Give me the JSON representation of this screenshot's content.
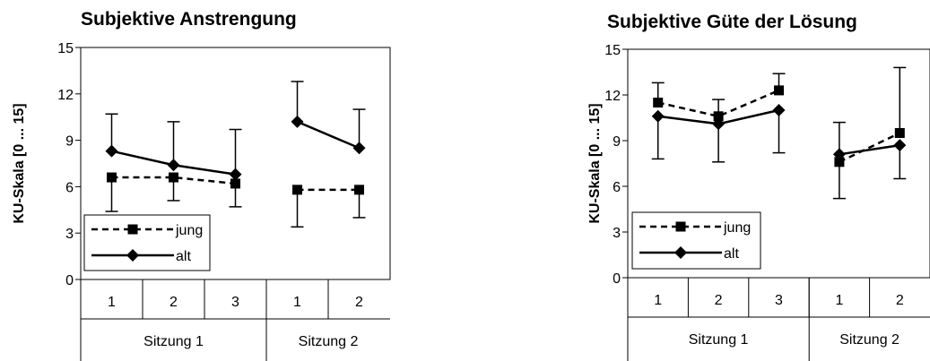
{
  "chart_data": [
    {
      "type": "line",
      "title": "Subjektive Anstrengung",
      "ylabel": "KU-Skala [0 ... 15]",
      "xlabel": "",
      "ylim": [
        0,
        15
      ],
      "yticks": [
        0,
        3,
        6,
        9,
        12,
        15
      ],
      "categories": [
        "1",
        "2",
        "3",
        "1",
        "2"
      ],
      "groups": [
        {
          "label": "Sitzung 1",
          "categories": [
            "1",
            "2",
            "3"
          ]
        },
        {
          "label": "Sitzung 2",
          "categories": [
            "1",
            "2"
          ]
        }
      ],
      "legend_position": "bottom-left",
      "series": [
        {
          "name": "jung",
          "style": "dashed",
          "marker": "square",
          "values": [
            6.6,
            6.6,
            6.2,
            5.8,
            5.8
          ],
          "error_low": [
            4.4,
            5.1,
            null,
            3.4,
            4.0
          ],
          "error_high": [
            null,
            null,
            null,
            null,
            null
          ]
        },
        {
          "name": "alt",
          "style": "solid",
          "marker": "diamond",
          "values": [
            8.3,
            7.4,
            6.8,
            10.2,
            8.5
          ],
          "error_low": [
            null,
            null,
            4.7,
            null,
            null
          ],
          "error_high": [
            10.7,
            10.2,
            9.7,
            12.8,
            11.0
          ]
        }
      ]
    },
    {
      "type": "line",
      "title": "Subjektive Güte der Lösung",
      "ylabel": "KU-Skala [0 ... 15]",
      "xlabel": "",
      "ylim": [
        0,
        15
      ],
      "yticks": [
        0,
        3,
        6,
        9,
        12,
        15
      ],
      "categories": [
        "1",
        "2",
        "3",
        "1",
        "2"
      ],
      "groups": [
        {
          "label": "Sitzung 1",
          "categories": [
            "1",
            "2",
            "3"
          ]
        },
        {
          "label": "Sitzung 2",
          "categories": [
            "1",
            "2"
          ]
        }
      ],
      "legend_position": "bottom-left",
      "series": [
        {
          "name": "jung",
          "style": "dashed",
          "marker": "square",
          "values": [
            11.5,
            10.6,
            12.3,
            7.6,
            9.5
          ],
          "error_low": [
            null,
            null,
            null,
            null,
            null
          ],
          "error_high": [
            12.8,
            11.7,
            13.4,
            null,
            13.8
          ]
        },
        {
          "name": "alt",
          "style": "solid",
          "marker": "diamond",
          "values": [
            10.6,
            10.1,
            11.0,
            8.1,
            8.7
          ],
          "error_low": [
            7.8,
            7.6,
            8.2,
            5.2,
            6.5
          ],
          "error_high": [
            null,
            null,
            null,
            10.2,
            null
          ]
        }
      ]
    }
  ]
}
